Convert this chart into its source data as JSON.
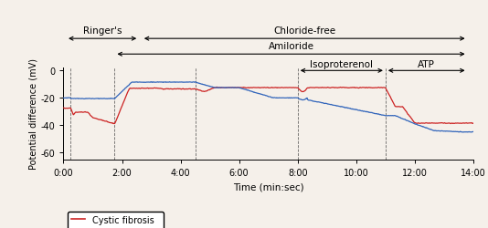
{
  "xlabel": "Time (min:sec)",
  "ylabel": "Potential difference (mV)",
  "xlim": [
    0,
    840
  ],
  "ylim": [
    -65,
    2
  ],
  "yticks": [
    -60,
    -40,
    -20,
    0
  ],
  "xtick_positions": [
    0,
    120,
    240,
    360,
    480,
    600,
    720,
    840
  ],
  "xtick_labels": [
    "0:00",
    "2:00",
    "4:00",
    "6:00",
    "8:00",
    "10:00",
    "12:00",
    "14:00"
  ],
  "vlines": [
    15,
    105,
    270,
    480,
    660
  ],
  "cf_color": "#cc2222",
  "hc_color": "#3366bb",
  "background": "#f5f0ea",
  "ann_ringers_x1": 5,
  "ann_ringers_x2": 155,
  "ann_chloride_x1": 160,
  "ann_chloride_x2": 828,
  "ann_amiloride_x1": 105,
  "ann_amiloride_x2": 828,
  "ann_iso_x1": 480,
  "ann_iso_x2": 660,
  "ann_atp_x1": 660,
  "ann_atp_x2": 828
}
